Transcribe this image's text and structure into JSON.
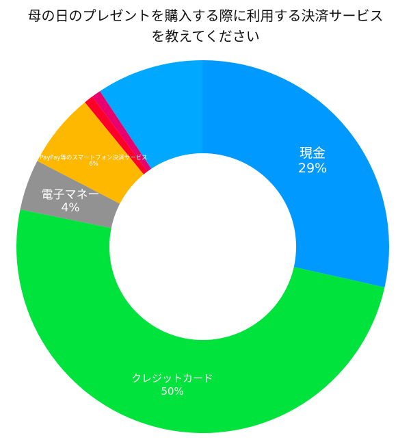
{
  "chart_data": {
    "type": "pie",
    "variant": "donut",
    "title": "母の日のプレゼントを購入する際に利用する決済サービスを教えてください",
    "title_lines": [
      "母の日のプレゼントを購入する際に利用する決済サービス",
      "を教えてください"
    ],
    "start_angle_deg": 0,
    "direction": "clockwise",
    "legend": "none",
    "slices": [
      {
        "label": "現金",
        "value": 28.5,
        "display": "29%",
        "color": "#0099ff"
      },
      {
        "label": "クレジットカード",
        "value": 49.7,
        "display": "50%",
        "color": "#00e33c"
      },
      {
        "label": "電子マネー",
        "value": 4.4,
        "display": "4%",
        "color": "#929292"
      },
      {
        "label": "PayPay等のスマートフォン決済サービス",
        "value": 6.5,
        "display": "6%",
        "color": "#ffb800"
      },
      {
        "label": "",
        "value": 0.8,
        "display": "",
        "color": "#ff0028"
      },
      {
        "label": "",
        "value": 0.8,
        "display": "",
        "color": "#e8006e"
      },
      {
        "label": "",
        "value": 9.3,
        "display": "",
        "color": "#00a8ff"
      }
    ]
  },
  "labels": {
    "cash_name": "現金",
    "cash_pct": "29%",
    "card_name": "クレジットカード",
    "card_pct": "50%",
    "emoney_name": "電子マネー",
    "emoney_pct": "4%",
    "paypay_name": "PayPay等のスマートフォン決済サービス",
    "paypay_pct": "6%"
  }
}
